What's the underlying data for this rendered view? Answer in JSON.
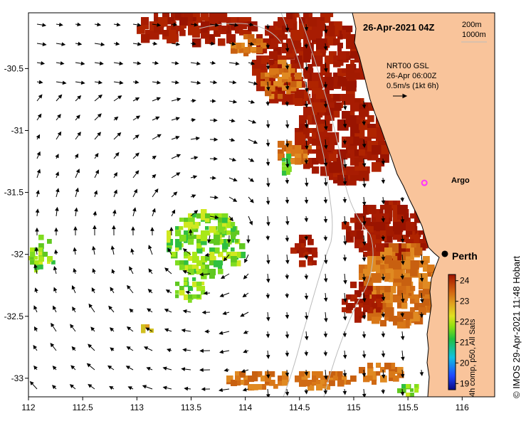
{
  "map": {
    "timestamp": "26-Apr-2021 04Z",
    "isobaths": [
      "200m",
      "1000m"
    ],
    "current_info": [
      "NRT00 GSL",
      "26-Apr 06:00Z",
      "0.5m/s (1kt 6h)"
    ],
    "argo_label": "Argo",
    "city_label": "Perth",
    "colorbar_label": "4h comp, p50, All Sats",
    "credit": "© IMOS 29-Apr-2021 11:48 Hobart",
    "colors": {
      "land": "#f9c49b",
      "sst_hot": "#a31a00",
      "sst_warm": "#d9781a",
      "sst_cool": "#7fdc20",
      "argo": "#ff33ff"
    }
  },
  "chart_data": {
    "type": "heatmap",
    "xlim": [
      112,
      116.3
    ],
    "ylim": [
      -33.15,
      -30.05
    ],
    "xticks": [
      "112",
      "112.5",
      "113",
      "113.5",
      "114",
      "114.5",
      "115",
      "115.5",
      "116"
    ],
    "yticks": [
      "-30.5",
      "-31",
      "-31.5",
      "-32",
      "-32.5",
      "-33"
    ],
    "colorbar_ticks": [
      "24",
      "23",
      "22",
      "21",
      "20",
      "19"
    ],
    "colorbar_range": [
      18.7,
      24.3
    ],
    "argo": {
      "lon": 115.75,
      "lat": -31.4
    },
    "perth": {
      "lon": 115.86,
      "lat": -31.95
    }
  }
}
